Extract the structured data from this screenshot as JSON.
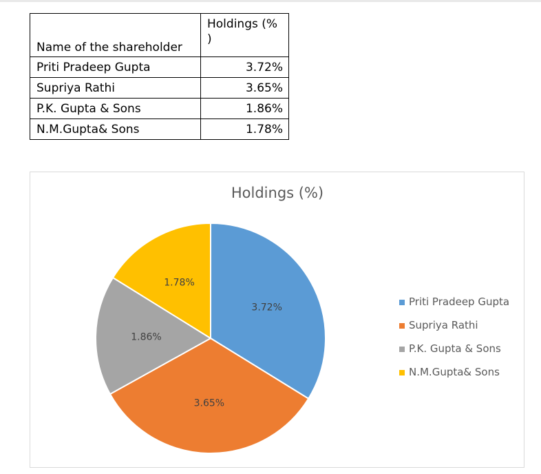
{
  "table": {
    "header": {
      "name": "Name of the shareholder",
      "value": "Holdings (% )"
    },
    "rows": [
      {
        "name": "Priti Pradeep Gupta",
        "value": "3.72%"
      },
      {
        "name": "Supriya Rathi",
        "value": "3.65%"
      },
      {
        "name": "P.K. Gupta & Sons",
        "value": "1.86%"
      },
      {
        "name": "N.M.Gupta& Sons",
        "value": "1.78%"
      }
    ]
  },
  "chart_data": {
    "type": "pie",
    "title": "Holdings (%)",
    "categories": [
      "Priti Pradeep Gupta",
      "Supriya Rathi",
      "P.K. Gupta & Sons",
      "N.M.Gupta& Sons"
    ],
    "values": [
      3.72,
      3.65,
      1.86,
      1.78
    ],
    "labels": [
      "3.72%",
      "3.65%",
      "1.86%",
      "1.78%"
    ],
    "colors": [
      "#5B9BD5",
      "#ED7D31",
      "#A5A5A5",
      "#FFC000"
    ],
    "legend": "right"
  }
}
